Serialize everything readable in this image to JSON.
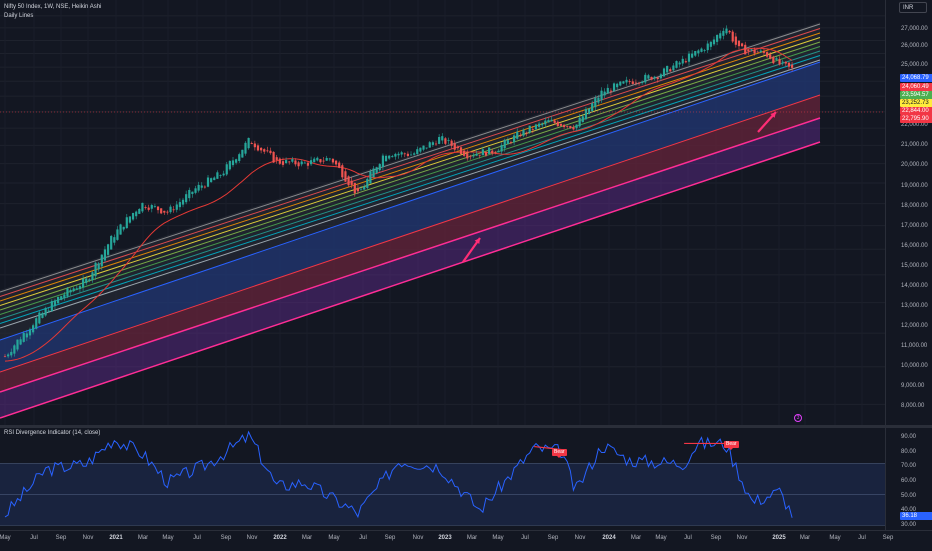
{
  "header": {
    "symbol_line": "Nifty 50 Index, 1W, NSE, Heikin Ashi",
    "indicator_line": "Daily Lines",
    "currency": "INR"
  },
  "price_axis": {
    "ticks": [
      "27,000.00",
      "26,000.00",
      "25,000.00",
      "22,000.00",
      "21,000.00",
      "20,000.00",
      "19,000.00",
      "18,000.00",
      "17,000.00",
      "16,000.00",
      "15,000.00",
      "14,000.00",
      "13,000.00",
      "12,000.00",
      "11,000.00",
      "10,000.00",
      "9,000.00",
      "8,000.00"
    ],
    "tags": [
      {
        "text": "24,068.79",
        "bg": "#2962ff",
        "fg": "#ffffff"
      },
      {
        "text": "24,060.49",
        "bg": "#f23645",
        "fg": "#ffffff"
      },
      {
        "text": "23,594.57",
        "bg": "#4caf50",
        "fg": "#ffffff"
      },
      {
        "text": "23,252.73",
        "bg": "#ffeb3b",
        "fg": "#131722"
      },
      {
        "text": "22,844.00",
        "bg": "#f23645",
        "fg": "#ffffff"
      },
      {
        "text": "22,795.90",
        "bg": "#f23645",
        "fg": "#ffffff"
      }
    ]
  },
  "time_axis": {
    "labels": [
      {
        "text": "May",
        "year": false
      },
      {
        "text": "Jul",
        "year": false
      },
      {
        "text": "Sep",
        "year": false
      },
      {
        "text": "Nov",
        "year": false
      },
      {
        "text": "2021",
        "year": true
      },
      {
        "text": "Mar",
        "year": false
      },
      {
        "text": "May",
        "year": false
      },
      {
        "text": "Jul",
        "year": false
      },
      {
        "text": "Sep",
        "year": false
      },
      {
        "text": "Nov",
        "year": false
      },
      {
        "text": "2022",
        "year": true
      },
      {
        "text": "Mar",
        "year": false
      },
      {
        "text": "May",
        "year": false
      },
      {
        "text": "Jul",
        "year": false
      },
      {
        "text": "Sep",
        "year": false
      },
      {
        "text": "Nov",
        "year": false
      },
      {
        "text": "2023",
        "year": true
      },
      {
        "text": "Mar",
        "year": false
      },
      {
        "text": "May",
        "year": false
      },
      {
        "text": "Jul",
        "year": false
      },
      {
        "text": "Sep",
        "year": false
      },
      {
        "text": "Nov",
        "year": false
      },
      {
        "text": "2024",
        "year": true
      },
      {
        "text": "Mar",
        "year": false
      },
      {
        "text": "May",
        "year": false
      },
      {
        "text": "Jul",
        "year": false
      },
      {
        "text": "Sep",
        "year": false
      },
      {
        "text": "Nov",
        "year": false
      },
      {
        "text": "2025",
        "year": true
      },
      {
        "text": "Mar",
        "year": false
      },
      {
        "text": "May",
        "year": false
      },
      {
        "text": "Jul",
        "year": false
      },
      {
        "text": "Sep",
        "year": false
      }
    ]
  },
  "rsi": {
    "title": "RSI Divergence Indicator (14, close)",
    "axis_ticks": [
      "90.00",
      "80.00",
      "70.00",
      "60.00",
      "50.00",
      "40.00",
      "30.00"
    ],
    "current_value": "36.18",
    "signals": [
      "Bear",
      "Bear"
    ]
  },
  "colors": {
    "background": "#131722",
    "bull": "#26a69a",
    "bear": "#ef5350",
    "rsi_line": "#2962ff",
    "arrow": "#ff2d75",
    "channel_lower": "#ff2d95"
  },
  "chart_data": {
    "type": "candlestick",
    "chart_style": "Heikin Ashi",
    "interval": "1W",
    "price_scale": "log",
    "ylim": [
      7500,
      27500
    ],
    "weekly_close_path": [
      {
        "date": "2020-04",
        "value": 9300
      },
      {
        "date": "2020-06",
        "value": 10300
      },
      {
        "date": "2020-08",
        "value": 11200
      },
      {
        "date": "2020-10",
        "value": 11800
      },
      {
        "date": "2020-12",
        "value": 13600
      },
      {
        "date": "2021-02",
        "value": 15000
      },
      {
        "date": "2021-04",
        "value": 14600
      },
      {
        "date": "2021-06",
        "value": 15700
      },
      {
        "date": "2021-08",
        "value": 16500
      },
      {
        "date": "2021-10",
        "value": 18300
      },
      {
        "date": "2021-12",
        "value": 17100
      },
      {
        "date": "2022-02",
        "value": 17000
      },
      {
        "date": "2022-04",
        "value": 17300
      },
      {
        "date": "2022-06",
        "value": 15400
      },
      {
        "date": "2022-08",
        "value": 17600
      },
      {
        "date": "2022-10",
        "value": 17500
      },
      {
        "date": "2022-12",
        "value": 18400
      },
      {
        "date": "2023-02",
        "value": 17500
      },
      {
        "date": "2023-04",
        "value": 17700
      },
      {
        "date": "2023-06",
        "value": 18700
      },
      {
        "date": "2023-08",
        "value": 19400
      },
      {
        "date": "2023-10",
        "value": 19100
      },
      {
        "date": "2023-12",
        "value": 21300
      },
      {
        "date": "2024-02",
        "value": 22000
      },
      {
        "date": "2024-04",
        "value": 22400
      },
      {
        "date": "2024-06",
        "value": 23500
      },
      {
        "date": "2024-08",
        "value": 24800
      },
      {
        "date": "2024-09",
        "value": 26200
      },
      {
        "date": "2024-10",
        "value": 24300
      },
      {
        "date": "2024-12",
        "value": 24000
      },
      {
        "date": "2025-01",
        "value": 23200
      },
      {
        "date": "2025-02",
        "value": 22800
      }
    ],
    "rsi_series": [
      {
        "date": "2020-04",
        "value": 37
      },
      {
        "date": "2020-07",
        "value": 66
      },
      {
        "date": "2020-10",
        "value": 70
      },
      {
        "date": "2020-12",
        "value": 86
      },
      {
        "date": "2021-02",
        "value": 77
      },
      {
        "date": "2021-04",
        "value": 58
      },
      {
        "date": "2021-07",
        "value": 70
      },
      {
        "date": "2021-10",
        "value": 88
      },
      {
        "date": "2021-12",
        "value": 55
      },
      {
        "date": "2022-02",
        "value": 58
      },
      {
        "date": "2022-06",
        "value": 38
      },
      {
        "date": "2022-09",
        "value": 72
      },
      {
        "date": "2022-12",
        "value": 68
      },
      {
        "date": "2023-03",
        "value": 40
      },
      {
        "date": "2023-07",
        "value": 80
      },
      {
        "date": "2023-09",
        "value": 78
      },
      {
        "date": "2023-10",
        "value": 52
      },
      {
        "date": "2023-12",
        "value": 82
      },
      {
        "date": "2024-02",
        "value": 72
      },
      {
        "date": "2024-06",
        "value": 70
      },
      {
        "date": "2024-07",
        "value": 83
      },
      {
        "date": "2024-09",
        "value": 83
      },
      {
        "date": "2024-11",
        "value": 45
      },
      {
        "date": "2025-01",
        "value": 52
      },
      {
        "date": "2025-02",
        "value": 36
      }
    ],
    "rsi_levels": [
      70,
      50,
      30
    ],
    "rsi_ylim": [
      27,
      93
    ]
  }
}
